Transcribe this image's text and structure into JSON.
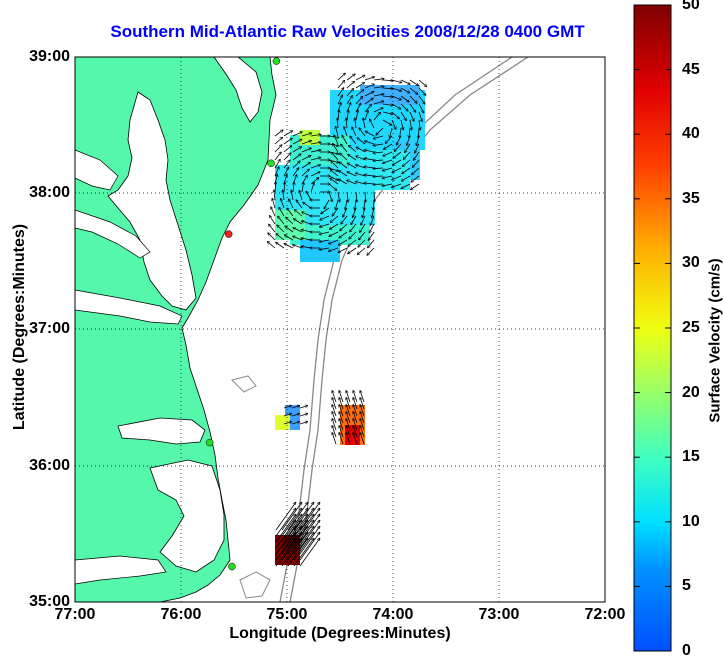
{
  "title": "Southern Mid-Atlantic Raw Velocities 2008/12/28 0400 GMT",
  "map": {
    "xlabel": "Longitude (Degrees:Minutes)",
    "ylabel": "Latitude (Degrees:Minutes)",
    "lon_range": [
      -77,
      -72
    ],
    "lat_range": [
      35,
      39
    ],
    "x_ticks": [
      {
        "value": -77,
        "label": "77:00"
      },
      {
        "value": -76,
        "label": "76:00"
      },
      {
        "value": -75,
        "label": "75:00"
      },
      {
        "value": -74,
        "label": "74:00"
      },
      {
        "value": -73,
        "label": "73:00"
      },
      {
        "value": -72,
        "label": "72:00"
      }
    ],
    "y_ticks": [
      {
        "value": 35,
        "label": "35:00"
      },
      {
        "value": 36,
        "label": "36:00"
      },
      {
        "value": 37,
        "label": "37:00"
      },
      {
        "value": 38,
        "label": "38:00"
      },
      {
        "value": 39,
        "label": "39:00"
      }
    ],
    "grid": "dotted",
    "land_color": "#55f7aa",
    "bathymetry_color": "#888888",
    "stations": [
      {
        "lon": -75.1,
        "lat": 38.97,
        "color": "#22dd22"
      },
      {
        "lon": -75.15,
        "lat": 38.22,
        "color": "#22dd22"
      },
      {
        "lon": -75.55,
        "lat": 37.7,
        "color": "#ee2222"
      },
      {
        "lon": -75.73,
        "lat": 36.17,
        "color": "#22dd22"
      },
      {
        "lon": -75.52,
        "lat": 35.26,
        "color": "#22dd22"
      }
    ]
  },
  "colorbar": {
    "label": "Surface Velocity (cm/s)",
    "min": 0,
    "max": 50,
    "ticks": [
      "0",
      "5",
      "10",
      "15",
      "20",
      "25",
      "30",
      "35",
      "40",
      "45",
      "50"
    ]
  }
}
